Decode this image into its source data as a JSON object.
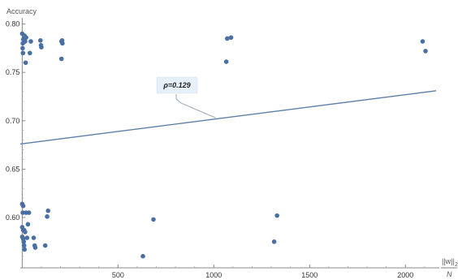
{
  "chart_data": {
    "type": "scatter",
    "title": "",
    "ylabel": "Accuracy",
    "xlabel_num": "||w||",
    "xlabel_sub": "2",
    "xlabel_den": "N",
    "xlim": [
      -10,
      2160
    ],
    "ylim": [
      0.548,
      0.803
    ],
    "x_ticks": [
      500,
      1000,
      1500,
      2000
    ],
    "y_ticks": [
      0.6,
      0.65,
      0.7,
      0.75,
      0.8
    ],
    "x_tick_labels": [
      "500",
      "1000",
      "1500",
      "2000"
    ],
    "y_tick_labels": [
      "0.60",
      "0.65",
      "0.70",
      "0.75",
      "0.80"
    ],
    "point_color": "#4a6fa5",
    "line_color": "#5a7fa8",
    "grid": false,
    "points": [
      [
        0,
        0.79
      ],
      [
        2,
        0.775
      ],
      [
        3,
        0.78
      ],
      [
        4,
        0.77
      ],
      [
        6,
        0.784
      ],
      [
        8,
        0.785
      ],
      [
        12,
        0.788
      ],
      [
        15,
        0.782
      ],
      [
        18,
        0.76
      ],
      [
        20,
        0.786
      ],
      [
        40,
        0.77
      ],
      [
        45,
        0.782
      ],
      [
        95,
        0.783
      ],
      [
        98,
        0.778
      ],
      [
        100,
        0.776
      ],
      [
        205,
        0.782
      ],
      [
        208,
        0.783
      ],
      [
        210,
        0.78
      ],
      [
        205,
        0.764
      ],
      [
        1065,
        0.761
      ],
      [
        1070,
        0.785
      ],
      [
        1090,
        0.786
      ],
      [
        2090,
        0.782
      ],
      [
        2105,
        0.772
      ],
      [
        0,
        0.614
      ],
      [
        5,
        0.612
      ],
      [
        3,
        0.605
      ],
      [
        20,
        0.605
      ],
      [
        35,
        0.605
      ],
      [
        0,
        0.59
      ],
      [
        5,
        0.587
      ],
      [
        10,
        0.587
      ],
      [
        15,
        0.585
      ],
      [
        0,
        0.58
      ],
      [
        5,
        0.578
      ],
      [
        8,
        0.575
      ],
      [
        10,
        0.571
      ],
      [
        12,
        0.567
      ],
      [
        25,
        0.579
      ],
      [
        30,
        0.593
      ],
      [
        60,
        0.579
      ],
      [
        65,
        0.571
      ],
      [
        68,
        0.569
      ],
      [
        120,
        0.571
      ],
      [
        130,
        0.601
      ],
      [
        135,
        0.607
      ],
      [
        630,
        0.56
      ],
      [
        685,
        0.598
      ],
      [
        1315,
        0.575
      ],
      [
        1330,
        0.602
      ]
    ],
    "fit_line": {
      "x": [
        -10,
        2160
      ],
      "y": [
        0.676,
        0.731
      ]
    },
    "annotation": {
      "label": "ρ=0.129",
      "anchor": [
        1010,
        0.703
      ]
    }
  }
}
